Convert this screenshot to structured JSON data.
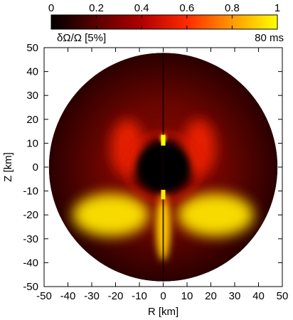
{
  "chart_data": {
    "type": "heatmap",
    "title": "",
    "xlabel": "R [km]",
    "ylabel": "Z [km]",
    "xlim": [
      -50,
      50
    ],
    "ylim": [
      -50,
      50
    ],
    "xticks": [
      -50,
      -40,
      -30,
      -20,
      -10,
      0,
      10,
      20,
      30,
      40,
      50
    ],
    "yticks": [
      -50,
      -40,
      -30,
      -20,
      -10,
      0,
      10,
      20,
      30,
      40,
      50
    ],
    "domain": "disk",
    "disk_radius": 48,
    "grid": false,
    "colorbar": {
      "position": "top",
      "range": [
        0,
        1
      ],
      "ticks": [
        0,
        0.2,
        0.4,
        0.6,
        0.8,
        1
      ],
      "tick_labels": [
        "0",
        "0.2",
        "0.4",
        "0.6",
        "0.8",
        "1"
      ],
      "label": "δΩ/Ω [5%]",
      "colors": [
        "#000000",
        "#5a0000",
        "#b00000",
        "#ff2a00",
        "#ff9900",
        "#ffff00"
      ]
    },
    "annotation": "80 ms",
    "features": [
      {
        "kind": "blob",
        "x": 0,
        "y": 0,
        "rx": 12,
        "ry": 10,
        "value": 0.0
      },
      {
        "kind": "lobe",
        "x": -22,
        "y": -20,
        "rx": 16,
        "ry": 9,
        "value": 0.95
      },
      {
        "kind": "lobe",
        "x": 22,
        "y": -20,
        "rx": 16,
        "ry": 9,
        "value": 0.95
      },
      {
        "kind": "lobe",
        "x": -15,
        "y": 8,
        "rx": 7,
        "ry": 12,
        "value": 0.55
      },
      {
        "kind": "lobe",
        "x": 15,
        "y": 8,
        "rx": 7,
        "ry": 12,
        "value": 0.55
      },
      {
        "kind": "jet",
        "x": 0,
        "y": -25,
        "rx": 3,
        "ry": 14,
        "value": 0.9
      },
      {
        "kind": "spot",
        "x": 0,
        "y": 12,
        "rx": 1.2,
        "ry": 2,
        "value": 1.0
      }
    ]
  }
}
